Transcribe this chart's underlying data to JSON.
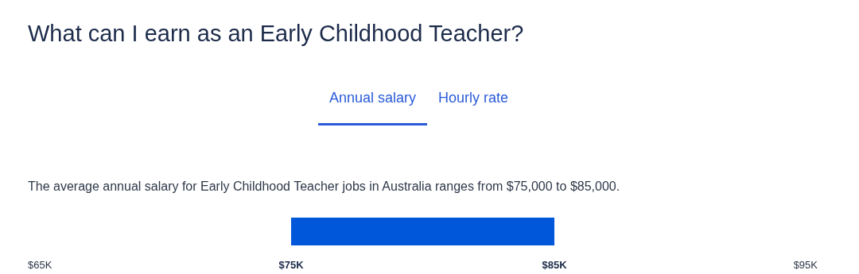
{
  "chart_data": {
    "type": "bar",
    "orientation": "horizontal",
    "title": "What can I earn as an Early Childhood Teacher?",
    "subtitle": "The average annual salary for Early Childhood Teacher jobs in Australia ranges from $75,000 to $85,000.",
    "annotations": [
      "Annual salary",
      "Hourly rate"
    ],
    "categories": [
      null
    ],
    "base": [
      75000
    ],
    "values": [
      10000
    ],
    "color": "#0057d9",
    "xlim": [
      65000,
      95000
    ],
    "xticks": [
      {
        "value": 65000,
        "label": "$65K"
      },
      {
        "value": 75000,
        "label": "$75K"
      },
      {
        "value": 85000,
        "label": "$85K"
      },
      {
        "value": 95000,
        "label": "$95K"
      }
    ],
    "grid": false
  }
}
